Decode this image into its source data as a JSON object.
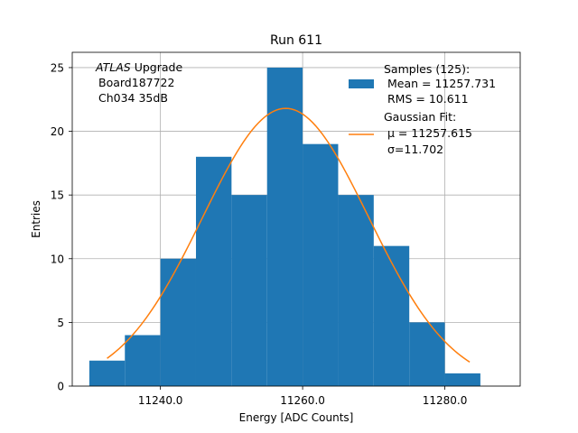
{
  "chart_data": {
    "type": "bar",
    "title": "Run 611",
    "xlabel": "Energy [ADC Counts]",
    "ylabel": "Entries",
    "xlim": [
      11227.6,
      11290.6
    ],
    "ylim": [
      0,
      26.2
    ],
    "grid": true,
    "xticks": [
      11240.0,
      11260.0,
      11280.0
    ],
    "xtick_labels": [
      "11240.0",
      "11260.0",
      "11280.0"
    ],
    "yticks": [
      0,
      5,
      10,
      15,
      20,
      25
    ],
    "ytick_labels": [
      "0",
      "5",
      "10",
      "15",
      "20",
      "25"
    ],
    "histogram": {
      "name": "Samples (125):",
      "bin_edges": [
        11230.0,
        11235.0,
        11240.0,
        11245.0,
        11250.0,
        11255.0,
        11260.0,
        11265.0,
        11270.0,
        11275.0,
        11280.0,
        11285.0
      ],
      "counts": [
        2,
        4,
        10,
        18,
        15,
        25,
        19,
        15,
        11,
        5,
        1
      ],
      "color": "#1f77b4"
    },
    "fit": {
      "name": "Gaussian Fit:",
      "mu": 11257.615,
      "sigma": 11.702,
      "amplitude": 21.8,
      "x_range": [
        11232.5,
        11283.5
      ],
      "color": "#ff7f0e"
    },
    "annotation": {
      "atlas": "ATLAS",
      "upgrade": " Upgrade",
      "board": "Board187722",
      "channel": "Ch034 35dB"
    },
    "legend": {
      "position": "top-right",
      "samples_title": "Samples (125):",
      "samples_mean": "Mean = 11257.731",
      "samples_rms": "RMS = 10.611",
      "fit_title": "Gaussian Fit:",
      "fit_mu": "μ = 11257.615",
      "fit_sigma": "σ=11.702"
    }
  }
}
